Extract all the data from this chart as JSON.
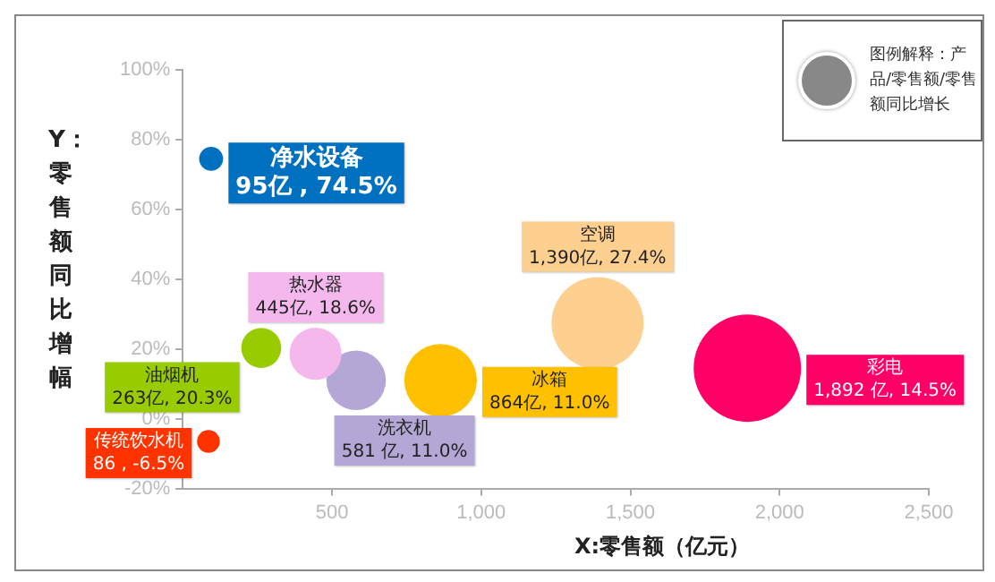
{
  "chart_data": {
    "type": "bubble",
    "xlabel": "X:零售额（亿元）",
    "ylabel": "Y：零售额同比增幅",
    "xlim": [
      0,
      2500
    ],
    "xticks": [
      {
        "value": 500,
        "label": "500"
      },
      {
        "value": 1000,
        "label": "1,000"
      },
      {
        "value": 1500,
        "label": "1,500"
      },
      {
        "value": 2000,
        "label": "2,000"
      },
      {
        "value": 2500,
        "label": "2,500"
      }
    ],
    "ylim": [
      -20,
      100
    ],
    "yticks": [
      {
        "value": -20,
        "label": "-20%"
      },
      {
        "value": 0,
        "label": "0%"
      },
      {
        "value": 20,
        "label": "20%"
      },
      {
        "value": 40,
        "label": "40%"
      },
      {
        "value": 60,
        "label": "60%"
      },
      {
        "value": 80,
        "label": "80%"
      },
      {
        "value": 100,
        "label": "100%"
      }
    ],
    "grid": false,
    "annotations": [
      "图例解释：产品/零售额/零售额同比增长"
    ],
    "series": [
      {
        "name": "净水设备",
        "color": "#0070c0",
        "x": [
          95
        ],
        "values": [
          74.5
        ],
        "sizes": [
          0.05
        ],
        "value_labels": [
          "95亿 , 74.5%"
        ]
      },
      {
        "name": "油烟机",
        "color": "#99cc00",
        "x": [
          263
        ],
        "values": [
          20.3
        ],
        "sizes": [
          0.139
        ],
        "value_labels": [
          "263亿, 20.3%"
        ]
      },
      {
        "name": "热水器",
        "color": "#f4b8ec",
        "x": [
          445
        ],
        "values": [
          18.6
        ],
        "sizes": [
          0.235
        ],
        "value_labels": [
          "445亿, 18.6%"
        ]
      },
      {
        "name": "洗衣机",
        "color": "#b4a7d6",
        "x": [
          581
        ],
        "values": [
          11.0
        ],
        "sizes": [
          0.307
        ],
        "value_labels": [
          "581 亿, 11.0%"
        ]
      },
      {
        "name": "冰箱",
        "color": "#ffc000",
        "x": [
          864
        ],
        "values": [
          11.0
        ],
        "sizes": [
          0.457
        ],
        "value_labels": [
          "864亿, 11.0%"
        ]
      },
      {
        "name": "空调",
        "color": "#fdd090",
        "x": [
          1390
        ],
        "values": [
          27.4
        ],
        "sizes": [
          0.735
        ],
        "value_labels": [
          "1,390亿, 27.4%"
        ]
      },
      {
        "name": "彩电",
        "color": "#ff0066",
        "x": [
          1892
        ],
        "values": [
          14.5
        ],
        "sizes": [
          1
        ],
        "value_labels": [
          "1,892 亿, 14.5%"
        ]
      },
      {
        "name": "传统饮水机",
        "color": "#ff3300",
        "x": [
          86
        ],
        "values": [
          -6.5
        ],
        "sizes": [
          0.045
        ],
        "value_labels": [
          "86 , -6.5%"
        ]
      }
    ]
  }
}
